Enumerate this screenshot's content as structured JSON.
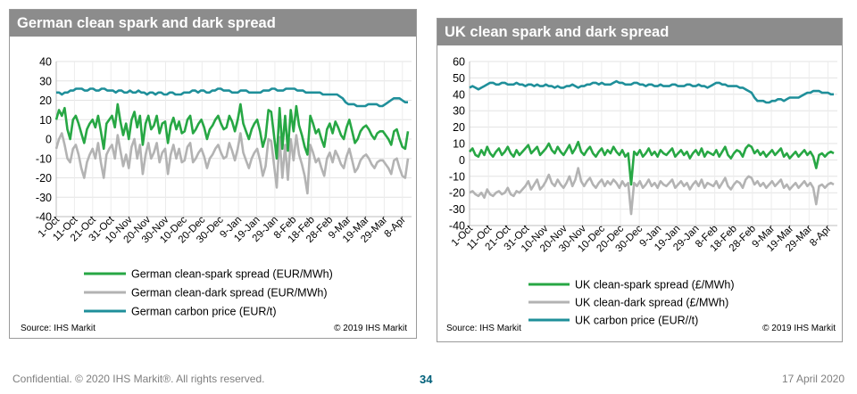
{
  "page": {
    "footer_left": "Confidential. © 2020 IHS Markit®. All rights reserved.",
    "page_number": "34",
    "footer_date": "17 April 2020"
  },
  "chart_data": [
    {
      "type": "line",
      "title": "German clean spark and dark spread",
      "ylim": [
        -40,
        40
      ],
      "yticks": [
        -40,
        -30,
        -20,
        -10,
        0,
        10,
        20,
        30,
        40
      ],
      "x_tick_labels": [
        "1-Oct",
        "11-Oct",
        "21-Oct",
        "31-Oct",
        "10-Nov",
        "20-Nov",
        "30-Nov",
        "10-Dec",
        "20-Dec",
        "30-Dec",
        "9-Jan",
        "19-Jan",
        "29-Jan",
        "8-Feb",
        "18-Feb",
        "28-Feb",
        "9-Mar",
        "19-Mar",
        "29-Mar",
        "8-Apr"
      ],
      "grid": true,
      "legend_position": "bottom",
      "source": "Source: IHS Markit",
      "copyright": "© 2019 IHS Markit",
      "colors": [
        "#27a744",
        "#b3b3b3",
        "#1f8f9a"
      ],
      "series": [
        {
          "name": "German clean-spark spread (EUR/MWh)",
          "values": [
            10,
            15,
            12,
            16,
            5,
            0,
            10,
            12,
            8,
            3,
            -2,
            5,
            8,
            10,
            6,
            12,
            4,
            -5,
            8,
            10,
            12,
            6,
            18,
            9,
            2,
            8,
            0,
            10,
            14,
            6,
            12,
            -3,
            8,
            12,
            5,
            7,
            12,
            3,
            8,
            9,
            -2,
            7,
            11,
            5,
            9,
            3,
            4,
            10,
            12,
            3,
            5,
            8,
            10,
            6,
            0,
            5,
            7,
            10,
            12,
            8,
            5,
            6,
            12,
            9,
            4,
            10,
            18,
            8,
            4,
            0,
            5,
            8,
            10,
            4,
            -4,
            1,
            15,
            14,
            2,
            -10,
            16,
            -5,
            12,
            -6,
            15,
            4,
            17,
            7,
            2,
            -4,
            -8,
            12,
            8,
            3,
            5,
            0,
            -4,
            5,
            8,
            3,
            9,
            6,
            2,
            0,
            6,
            10,
            4,
            -2,
            0,
            4,
            6,
            7,
            5,
            2,
            0,
            3,
            4,
            4,
            2,
            0,
            -3,
            4,
            5,
            0,
            -4,
            -5,
            4
          ]
        },
        {
          "name": "German clean-dark spread (EUR/MWh)",
          "values": [
            -5,
            0,
            3,
            -3,
            -10,
            -12,
            -5,
            -3,
            -8,
            -15,
            -20,
            -12,
            -8,
            -5,
            -10,
            -2,
            -12,
            -20,
            -8,
            -5,
            -3,
            -10,
            2,
            -6,
            -14,
            -8,
            -15,
            -4,
            0,
            -10,
            -3,
            -18,
            -8,
            -2,
            -10,
            -7,
            -2,
            -12,
            -7,
            -5,
            -18,
            -8,
            -3,
            -10,
            -5,
            -12,
            -11,
            -4,
            -2,
            -12,
            -10,
            -7,
            -5,
            -9,
            -15,
            -10,
            -8,
            -5,
            -3,
            -7,
            -10,
            -9,
            -2,
            -6,
            -11,
            -5,
            3,
            -7,
            -11,
            -15,
            -10,
            -7,
            -5,
            -11,
            -19,
            -14,
            0,
            -1,
            -13,
            -25,
            1,
            -20,
            -3,
            -21,
            0,
            -11,
            2,
            -8,
            -13,
            -19,
            -28,
            -3,
            -7,
            -12,
            -10,
            -15,
            -19,
            -10,
            -7,
            -12,
            -6,
            -9,
            -13,
            -15,
            -9,
            -5,
            -11,
            -17,
            -15,
            -11,
            -9,
            -8,
            -10,
            -13,
            -15,
            -12,
            -11,
            -11,
            -13,
            -15,
            -18,
            -11,
            -10,
            -15,
            -19,
            -20,
            -10
          ]
        },
        {
          "name": "German carbon price (EUR/t)",
          "values": [
            24,
            24,
            23,
            24,
            24,
            25,
            25,
            26,
            26,
            26,
            25,
            25,
            26,
            26,
            25,
            25,
            26,
            26,
            25,
            25,
            25,
            24,
            25,
            25,
            24,
            24,
            25,
            24,
            24,
            25,
            24,
            24,
            23,
            24,
            24,
            23,
            24,
            24,
            23,
            23,
            24,
            24,
            23,
            23,
            23,
            24,
            24,
            24,
            25,
            25,
            24,
            25,
            25,
            24,
            24,
            25,
            25,
            26,
            26,
            25,
            25,
            25,
            24,
            24,
            24,
            25,
            25,
            25,
            24,
            24,
            24,
            24,
            24,
            25,
            25,
            25,
            26,
            26,
            25,
            25,
            25,
            26,
            26,
            26,
            26,
            25,
            25,
            25,
            24,
            24,
            24,
            24,
            24,
            24,
            23,
            23,
            23,
            23,
            23,
            23,
            22,
            21,
            19,
            18,
            18,
            18,
            17,
            17,
            17,
            17,
            18,
            18,
            18,
            18,
            17,
            17,
            18,
            19,
            20,
            21,
            21,
            21,
            20,
            19,
            19
          ]
        }
      ]
    },
    {
      "type": "line",
      "title": "UK clean spark and dark spread",
      "ylim": [
        -40,
        60
      ],
      "yticks": [
        -40,
        -30,
        -20,
        -10,
        0,
        10,
        20,
        30,
        40,
        50,
        60
      ],
      "x_tick_labels": [
        "1-Oct",
        "11-Oct",
        "21-Oct",
        "31-Oct",
        "10-Nov",
        "20-Nov",
        "30-Nov",
        "10-Dec",
        "20-Dec",
        "30-Dec",
        "9-Jan",
        "19-Jan",
        "29-Jan",
        "8-Feb",
        "18-Feb",
        "28-Feb",
        "9-Mar",
        "19-Mar",
        "29-Mar",
        "8-Apr"
      ],
      "grid": true,
      "legend_position": "bottom",
      "source": "Source: IHS Markit",
      "copyright": "© 2019 IHS Markit",
      "colors": [
        "#27a744",
        "#b3b3b3",
        "#1f8f9a"
      ],
      "series": [
        {
          "name": "UK clean-spark spread (£/MWh)",
          "values": [
            5,
            7,
            3,
            2,
            6,
            3,
            8,
            4,
            2,
            5,
            7,
            3,
            5,
            8,
            4,
            2,
            6,
            3,
            5,
            7,
            9,
            4,
            6,
            8,
            3,
            5,
            7,
            10,
            6,
            4,
            8,
            5,
            3,
            6,
            9,
            4,
            7,
            11,
            5,
            3,
            6,
            8,
            4,
            2,
            5,
            7,
            3,
            6,
            4,
            8,
            5,
            3,
            6,
            2,
            4,
            -15,
            5,
            3,
            6,
            2,
            4,
            7,
            3,
            5,
            2,
            6,
            4,
            3,
            5,
            7,
            2,
            4,
            6,
            3,
            5,
            1,
            4,
            6,
            3,
            7,
            2,
            5,
            4,
            3,
            6,
            2,
            5,
            8,
            3,
            1,
            4,
            6,
            5,
            2,
            7,
            9,
            8,
            4,
            6,
            3,
            5,
            2,
            4,
            6,
            3,
            5,
            7,
            2,
            4,
            1,
            3,
            5,
            2,
            4,
            6,
            3,
            5,
            2,
            -5,
            3,
            4,
            2,
            4,
            5,
            4
          ]
        },
        {
          "name": "UK clean-dark spread (£/MWh)",
          "values": [
            -20,
            -19,
            -21,
            -22,
            -20,
            -23,
            -18,
            -21,
            -22,
            -20,
            -19,
            -21,
            -20,
            -17,
            -21,
            -22,
            -19,
            -20,
            -18,
            -16,
            -13,
            -18,
            -15,
            -12,
            -18,
            -16,
            -13,
            -9,
            -14,
            -16,
            -12,
            -15,
            -17,
            -14,
            -10,
            -16,
            -12,
            -5,
            -13,
            -16,
            -13,
            -11,
            -15,
            -17,
            -14,
            -12,
            -16,
            -13,
            -15,
            -12,
            -14,
            -17,
            -13,
            -16,
            -14,
            -33,
            -14,
            -16,
            -13,
            -17,
            -15,
            -12,
            -16,
            -14,
            -17,
            -13,
            -15,
            -16,
            -14,
            -12,
            -17,
            -15,
            -13,
            -16,
            -14,
            -18,
            -15,
            -13,
            -16,
            -12,
            -17,
            -14,
            -15,
            -16,
            -13,
            -17,
            -14,
            -11,
            -16,
            -18,
            -15,
            -13,
            -14,
            -17,
            -12,
            -10,
            -11,
            -15,
            -13,
            -16,
            -14,
            -17,
            -15,
            -13,
            -16,
            -14,
            -12,
            -17,
            -15,
            -18,
            -16,
            -14,
            -17,
            -15,
            -13,
            -16,
            -14,
            -17,
            -27,
            -16,
            -15,
            -17,
            -15,
            -14,
            -15
          ]
        },
        {
          "name": "UK carbon price (EUR//t)",
          "values": [
            44,
            45,
            44,
            43,
            44,
            45,
            46,
            47,
            47,
            46,
            46,
            47,
            47,
            46,
            46,
            46,
            47,
            46,
            46,
            45,
            46,
            46,
            45,
            46,
            45,
            45,
            46,
            45,
            45,
            44,
            45,
            44,
            44,
            45,
            45,
            46,
            45,
            44,
            45,
            45,
            46,
            46,
            47,
            47,
            46,
            47,
            46,
            46,
            46,
            47,
            48,
            47,
            47,
            46,
            46,
            46,
            47,
            47,
            46,
            46,
            45,
            46,
            46,
            45,
            45,
            46,
            45,
            45,
            45,
            46,
            46,
            45,
            45,
            45,
            46,
            46,
            45,
            45,
            46,
            45,
            45,
            44,
            45,
            46,
            47,
            47,
            46,
            46,
            45,
            45,
            45,
            45,
            44,
            44,
            43,
            42,
            41,
            38,
            36,
            36,
            36,
            35,
            35,
            36,
            36,
            37,
            37,
            36,
            37,
            38,
            38,
            38,
            38,
            39,
            40,
            41,
            41,
            42,
            42,
            42,
            41,
            41,
            41,
            40,
            40
          ]
        }
      ]
    }
  ]
}
